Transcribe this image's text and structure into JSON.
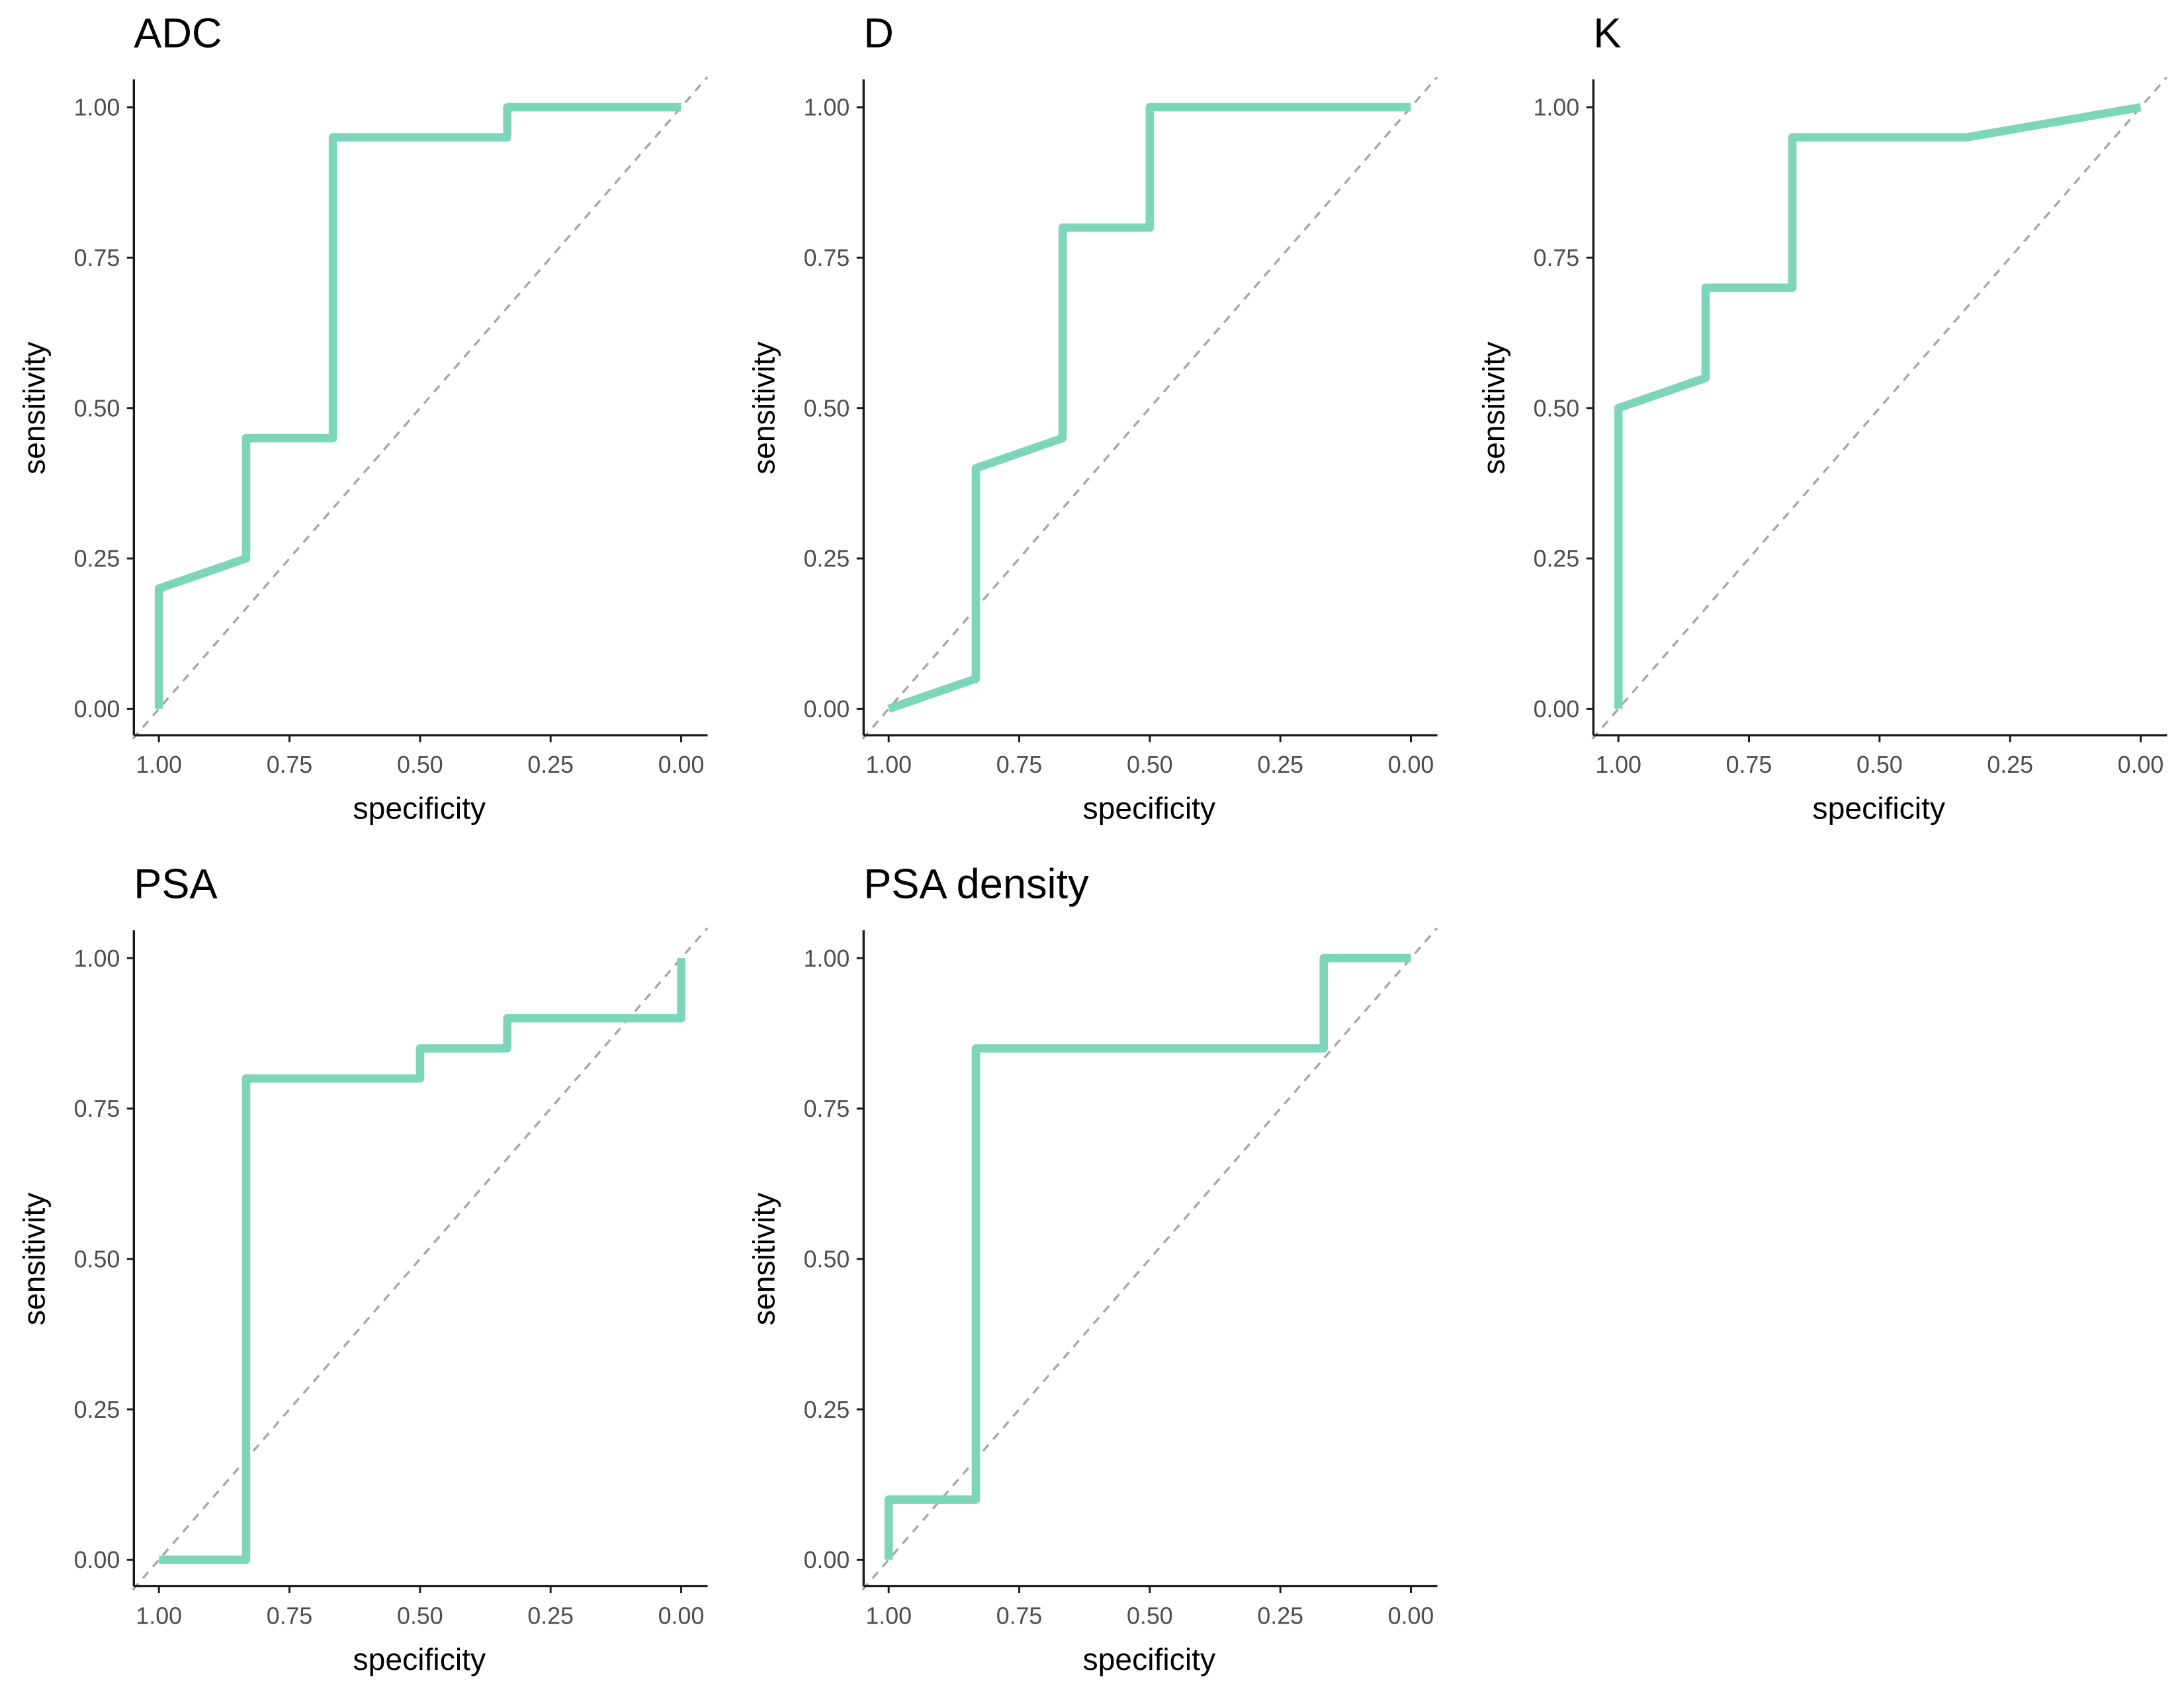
{
  "colors": {
    "roc": "#7dd6b9",
    "diagonal": "#a6a6a6",
    "axis": "#1a1a1a"
  },
  "chart_data": [
    {
      "type": "line",
      "title": "ADC",
      "xlabel": "specificity",
      "ylabel": "sensitivity",
      "xlim": [
        1,
        0
      ],
      "ylim": [
        0,
        1
      ],
      "grid": false,
      "reversed_x": true,
      "xticks": [
        "1.00",
        "0.75",
        "0.50",
        "0.25",
        "0.00"
      ],
      "yticks": [
        "0.00",
        "0.25",
        "0.50",
        "0.75",
        "1.00"
      ],
      "specificity": [
        1,
        1,
        0.833,
        0.833,
        0.667,
        0.667,
        0.333,
        0.333,
        0
      ],
      "sensitivity": [
        0,
        0.2,
        0.25,
        0.45,
        0.45,
        0.95,
        0.95,
        1,
        1
      ]
    },
    {
      "type": "line",
      "title": "D",
      "xlabel": "specificity",
      "ylabel": "sensitivity",
      "xlim": [
        1,
        0
      ],
      "ylim": [
        0,
        1
      ],
      "grid": false,
      "reversed_x": true,
      "xticks": [
        "1.00",
        "0.75",
        "0.50",
        "0.25",
        "0.00"
      ],
      "yticks": [
        "0.00",
        "0.25",
        "0.50",
        "0.75",
        "1.00"
      ],
      "specificity": [
        1,
        0.833,
        0.833,
        0.667,
        0.667,
        0.5,
        0.5,
        0
      ],
      "sensitivity": [
        0,
        0.05,
        0.4,
        0.45,
        0.8,
        0.8,
        1,
        1
      ]
    },
    {
      "type": "line",
      "title": "K",
      "xlabel": "specificity",
      "ylabel": "sensitivity",
      "xlim": [
        1,
        0
      ],
      "ylim": [
        0,
        1
      ],
      "grid": false,
      "reversed_x": true,
      "xticks": [
        "1.00",
        "0.75",
        "0.50",
        "0.25",
        "0.00"
      ],
      "yticks": [
        "0.00",
        "0.25",
        "0.50",
        "0.75",
        "1.00"
      ],
      "specificity": [
        1,
        1,
        0.833,
        0.833,
        0.667,
        0.667,
        0.333,
        0
      ],
      "sensitivity": [
        0,
        0.5,
        0.55,
        0.7,
        0.7,
        0.95,
        0.95,
        1
      ]
    },
    {
      "type": "line",
      "title": "PSA",
      "xlabel": "specificity",
      "ylabel": "sensitivity",
      "xlim": [
        1,
        0
      ],
      "ylim": [
        0,
        1
      ],
      "grid": false,
      "reversed_x": true,
      "xticks": [
        "1.00",
        "0.75",
        "0.50",
        "0.25",
        "0.00"
      ],
      "yticks": [
        "0.00",
        "0.25",
        "0.50",
        "0.75",
        "1.00"
      ],
      "specificity": [
        1,
        0.833,
        0.833,
        0.5,
        0.5,
        0.333,
        0.333,
        0,
        0
      ],
      "sensitivity": [
        0,
        0,
        0.8,
        0.8,
        0.85,
        0.85,
        0.9,
        0.9,
        1
      ]
    },
    {
      "type": "line",
      "title": "PSA density",
      "xlabel": "specificity",
      "ylabel": "sensitivity",
      "xlim": [
        1,
        0
      ],
      "ylim": [
        0,
        1
      ],
      "grid": false,
      "reversed_x": true,
      "xticks": [
        "1.00",
        "0.75",
        "0.50",
        "0.25",
        "0.00"
      ],
      "yticks": [
        "0.00",
        "0.25",
        "0.50",
        "0.75",
        "1.00"
      ],
      "specificity": [
        1,
        1,
        0.833,
        0.833,
        0.167,
        0.167,
        0
      ],
      "sensitivity": [
        0,
        0.1,
        0.1,
        0.85,
        0.85,
        1,
        1
      ]
    }
  ]
}
